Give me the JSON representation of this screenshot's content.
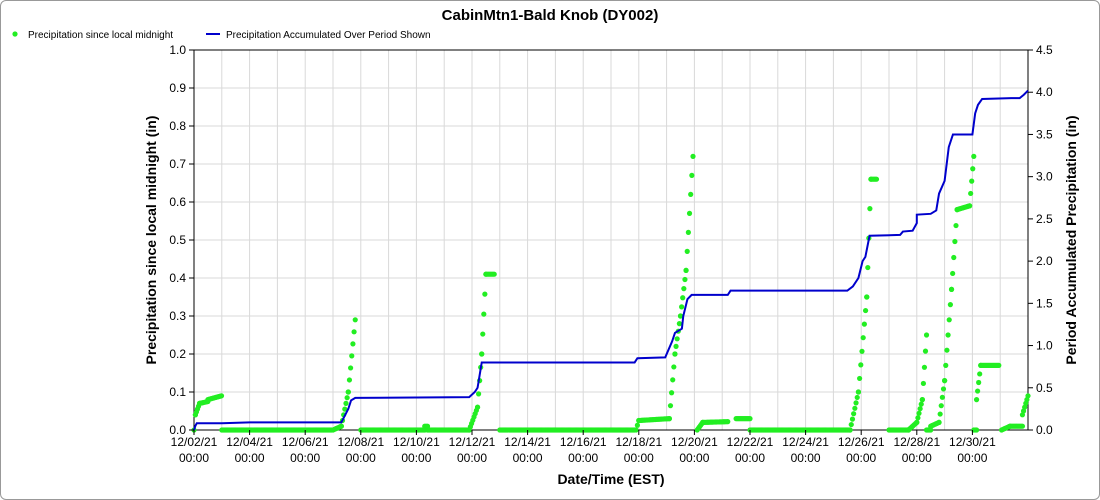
{
  "chart_data": {
    "type": "line",
    "title": "CabinMtn1-Bald Knob (DY002)",
    "xlabel": "Date/Time (EST)",
    "ylabel": "Precipitation since local midnight (in)",
    "y2label": "Period Accumulated Precipitation (in)",
    "grid": true,
    "legend_position": "top-left",
    "x_start": "12/02/21 00:00",
    "x_end": "12/31/21 23:00",
    "xlim_days": [
      0,
      30
    ],
    "ylim": [
      0,
      1.0
    ],
    "y2lim": [
      0,
      4.5
    ],
    "x_tick_days": [
      0,
      2,
      4,
      6,
      8,
      10,
      12,
      14,
      16,
      18,
      20,
      22,
      24,
      26,
      28
    ],
    "x_tick_labels": [
      [
        "12/02/21",
        "00:00"
      ],
      [
        "12/04/21",
        "00:00"
      ],
      [
        "12/06/21",
        "00:00"
      ],
      [
        "12/08/21",
        "00:00"
      ],
      [
        "12/10/21",
        "00:00"
      ],
      [
        "12/12/21",
        "00:00"
      ],
      [
        "12/14/21",
        "00:00"
      ],
      [
        "12/16/21",
        "00:00"
      ],
      [
        "12/18/21",
        "00:00"
      ],
      [
        "12/20/21",
        "00:00"
      ],
      [
        "12/22/21",
        "00:00"
      ],
      [
        "12/24/21",
        "00:00"
      ],
      [
        "12/26/21",
        "00:00"
      ],
      [
        "12/28/21",
        "00:00"
      ],
      [
        "12/30/21",
        "00:00"
      ]
    ],
    "y_ticks": [
      "0.0",
      "0.1",
      "0.2",
      "0.3",
      "0.4",
      "0.5",
      "0.6",
      "0.7",
      "0.8",
      "0.9",
      "1.0"
    ],
    "y2_ticks": [
      "0.0",
      "0.5",
      "1.0",
      "1.5",
      "2.0",
      "2.5",
      "3.0",
      "3.5",
      "4.0",
      "4.5"
    ],
    "series": [
      {
        "name": "Precipitation since local midnight",
        "style": "markers",
        "color": "#22ee22",
        "segments": [
          {
            "start": 0.0,
            "end": 0.05,
            "from": 0.0,
            "to": 0.04
          },
          {
            "start": 0.05,
            "end": 0.2,
            "from": 0.04,
            "to": 0.07
          },
          {
            "start": 0.2,
            "end": 0.5,
            "from": 0.07,
            "to": 0.075
          },
          {
            "start": 0.5,
            "end": 0.99,
            "from": 0.08,
            "to": 0.09
          },
          {
            "start": 1.0,
            "end": 4.95,
            "from": 0.0,
            "to": 0.0
          },
          {
            "start": 5.0,
            "end": 5.3,
            "from": 0.0,
            "to": 0.01
          },
          {
            "start": 5.3,
            "end": 5.55,
            "from": 0.01,
            "to": 0.1
          },
          {
            "start": 5.55,
            "end": 5.8,
            "from": 0.1,
            "to": 0.29
          },
          {
            "start": 6.0,
            "end": 8.3,
            "from": 0.0,
            "to": 0.0
          },
          {
            "start": 8.3,
            "end": 8.4,
            "from": 0.01,
            "to": 0.01
          },
          {
            "start": 8.4,
            "end": 9.9,
            "from": 0.0,
            "to": 0.0
          },
          {
            "start": 9.9,
            "end": 10.2,
            "from": 0.0,
            "to": 0.06
          },
          {
            "start": 10.2,
            "end": 10.35,
            "from": 0.06,
            "to": 0.2
          },
          {
            "start": 10.35,
            "end": 10.5,
            "from": 0.2,
            "to": 0.41
          },
          {
            "start": 10.5,
            "end": 10.8,
            "from": 0.41,
            "to": 0.41
          },
          {
            "start": 11.0,
            "end": 15.85,
            "from": 0.0,
            "to": 0.0
          },
          {
            "start": 15.9,
            "end": 16.0,
            "from": 0.0,
            "to": 0.025
          },
          {
            "start": 16.0,
            "end": 17.1,
            "from": 0.025,
            "to": 0.03
          },
          {
            "start": 17.1,
            "end": 17.3,
            "from": 0.03,
            "to": 0.2
          },
          {
            "start": 17.3,
            "end": 17.5,
            "from": 0.2,
            "to": 0.3
          },
          {
            "start": 17.5,
            "end": 17.7,
            "from": 0.3,
            "to": 0.42
          },
          {
            "start": 17.7,
            "end": 17.95,
            "from": 0.42,
            "to": 0.72
          },
          {
            "start": 18.1,
            "end": 18.3,
            "from": 0.0,
            "to": 0.02
          },
          {
            "start": 18.3,
            "end": 19.2,
            "from": 0.02,
            "to": 0.022
          },
          {
            "start": 19.5,
            "end": 20.0,
            "from": 0.03,
            "to": 0.03
          },
          {
            "start": 20.0,
            "end": 23.6,
            "from": 0.0,
            "to": 0.0
          },
          {
            "start": 23.6,
            "end": 23.9,
            "from": 0.0,
            "to": 0.1
          },
          {
            "start": 23.9,
            "end": 24.2,
            "from": 0.1,
            "to": 0.35
          },
          {
            "start": 24.2,
            "end": 24.35,
            "from": 0.35,
            "to": 0.66
          },
          {
            "start": 24.35,
            "end": 24.55,
            "from": 0.66,
            "to": 0.66
          },
          {
            "start": 25.0,
            "end": 25.7,
            "from": 0.0,
            "to": 0.0
          },
          {
            "start": 25.7,
            "end": 26.0,
            "from": 0.0,
            "to": 0.02
          },
          {
            "start": 26.0,
            "end": 26.2,
            "from": 0.02,
            "to": 0.08
          },
          {
            "start": 26.2,
            "end": 26.35,
            "from": 0.08,
            "to": 0.25
          },
          {
            "start": 26.35,
            "end": 26.5,
            "from": 0.0,
            "to": 0.0
          },
          {
            "start": 26.5,
            "end": 26.8,
            "from": 0.01,
            "to": 0.02
          },
          {
            "start": 26.8,
            "end": 27.0,
            "from": 0.02,
            "to": 0.13
          },
          {
            "start": 27.0,
            "end": 27.25,
            "from": 0.13,
            "to": 0.37
          },
          {
            "start": 27.25,
            "end": 27.45,
            "from": 0.37,
            "to": 0.58
          },
          {
            "start": 27.45,
            "end": 27.9,
            "from": 0.58,
            "to": 0.59
          },
          {
            "start": 27.9,
            "end": 28.05,
            "from": 0.59,
            "to": 0.72
          },
          {
            "start": 28.05,
            "end": 28.15,
            "from": 0.0,
            "to": 0.0
          },
          {
            "start": 28.15,
            "end": 28.3,
            "from": 0.08,
            "to": 0.17
          },
          {
            "start": 28.3,
            "end": 28.95,
            "from": 0.17,
            "to": 0.17
          },
          {
            "start": 29.05,
            "end": 29.35,
            "from": 0.0,
            "to": 0.01
          },
          {
            "start": 29.35,
            "end": 29.8,
            "from": 0.01,
            "to": 0.01
          },
          {
            "start": 29.8,
            "end": 30.0,
            "from": 0.04,
            "to": 0.09
          }
        ]
      },
      {
        "name": "Precipitation Accumulated Over Period Shown",
        "style": "line",
        "color": "#0000cc",
        "axis": "y2",
        "points": [
          [
            0.0,
            0.0
          ],
          [
            0.05,
            0.05
          ],
          [
            0.1,
            0.08
          ],
          [
            1.0,
            0.08
          ],
          [
            2.0,
            0.09
          ],
          [
            5.3,
            0.09
          ],
          [
            5.55,
            0.25
          ],
          [
            5.65,
            0.35
          ],
          [
            5.8,
            0.38
          ],
          [
            8.0,
            0.385
          ],
          [
            9.9,
            0.39
          ],
          [
            10.1,
            0.45
          ],
          [
            10.2,
            0.5
          ],
          [
            10.35,
            0.8
          ],
          [
            10.5,
            0.8
          ],
          [
            15.0,
            0.8
          ],
          [
            15.85,
            0.8
          ],
          [
            15.95,
            0.85
          ],
          [
            16.95,
            0.86
          ],
          [
            17.2,
            1.05
          ],
          [
            17.3,
            1.15
          ],
          [
            17.55,
            1.2
          ],
          [
            17.6,
            1.35
          ],
          [
            17.75,
            1.55
          ],
          [
            17.9,
            1.6
          ],
          [
            19.2,
            1.6
          ],
          [
            19.3,
            1.65
          ],
          [
            21.0,
            1.65
          ],
          [
            23.5,
            1.65
          ],
          [
            23.7,
            1.7
          ],
          [
            23.9,
            1.8
          ],
          [
            24.05,
            2.0
          ],
          [
            24.15,
            2.05
          ],
          [
            24.3,
            2.3
          ],
          [
            25.4,
            2.31
          ],
          [
            25.5,
            2.35
          ],
          [
            25.85,
            2.36
          ],
          [
            26.0,
            2.45
          ],
          [
            26.0,
            2.55
          ],
          [
            26.5,
            2.56
          ],
          [
            26.7,
            2.6
          ],
          [
            26.8,
            2.8
          ],
          [
            27.0,
            2.95
          ],
          [
            27.15,
            3.35
          ],
          [
            27.3,
            3.5
          ],
          [
            28.0,
            3.5
          ],
          [
            28.1,
            3.75
          ],
          [
            28.2,
            3.85
          ],
          [
            28.35,
            3.92
          ],
          [
            29.4,
            3.93
          ],
          [
            29.7,
            3.93
          ],
          [
            29.85,
            3.97
          ],
          [
            30.0,
            4.02
          ]
        ]
      }
    ]
  }
}
